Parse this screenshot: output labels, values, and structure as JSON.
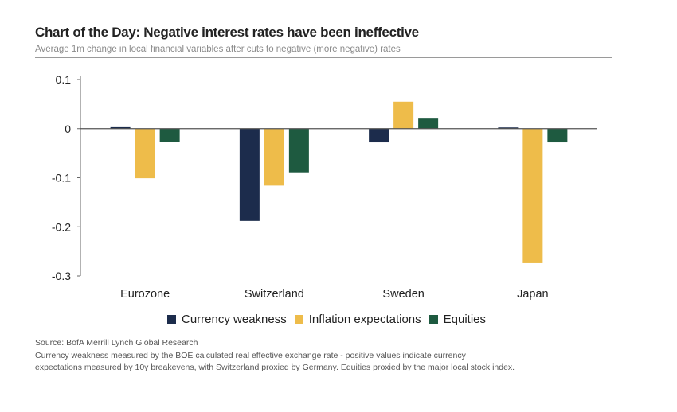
{
  "title": "Chart of the Day: Negative interest rates have been ineffective",
  "subtitle": "Average 1m change in local financial variables after cuts to negative (more negative) rates",
  "source": "Source: BofA Merrill Lynch Global Research",
  "notes": [
    "Currency weakness measured by the BOE calculated real effective exchange rate - positive values indicate currency",
    "expectations measured by 10y breakevens, with Switzerland proxied by Germany. Equities proxied by the major local stock index."
  ],
  "colors": {
    "currency": "#1c2c4c",
    "inflation": "#eebc4a",
    "equities": "#1e5a40"
  },
  "chart_data": {
    "type": "bar",
    "categories": [
      "Eurozone",
      "Switzerland",
      "Sweden",
      "Japan"
    ],
    "series": [
      {
        "name": "Currency weakness",
        "values": [
          0.003,
          -0.188,
          -0.028,
          0.002
        ]
      },
      {
        "name": "Inflation expectations",
        "values": [
          -0.101,
          -0.116,
          0.055,
          -0.274
        ]
      },
      {
        "name": "Equities",
        "values": [
          -0.027,
          -0.089,
          0.022,
          -0.028
        ]
      }
    ],
    "ylim": [
      -0.3,
      0.1
    ],
    "yticks": [
      0.1,
      0,
      -0.1,
      -0.2,
      -0.3
    ],
    "ytick_labels": [
      "0.1",
      "0",
      "-0.1",
      "-0.2",
      "-0.3"
    ],
    "legend_position": "bottom",
    "grid": false
  }
}
